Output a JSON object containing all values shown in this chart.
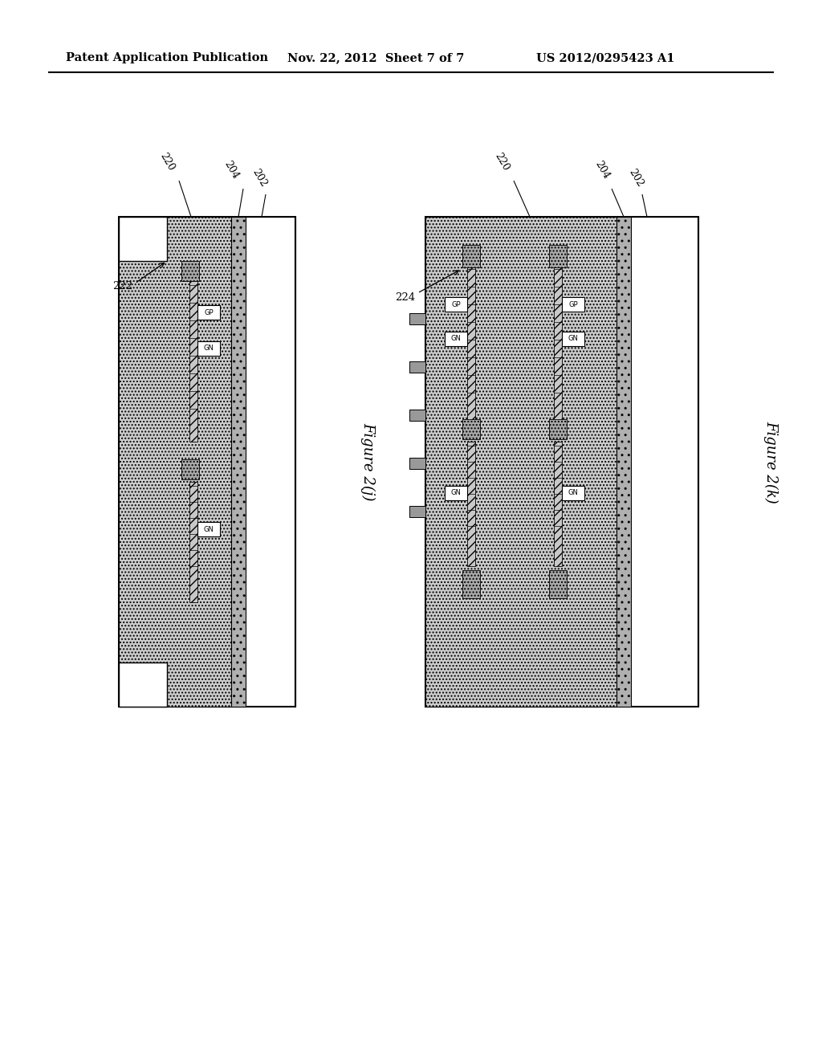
{
  "header_left": "Patent Application Publication",
  "header_center": "Nov. 22, 2012  Sheet 7 of 7",
  "header_right": "US 2012/0295423 A1",
  "fig_j_label": "Figure 2(j)",
  "fig_k_label": "Figure 2(k)",
  "bg": "#ffffff",
  "c220": "#cccccc",
  "c204": "#b0b0b0",
  "c202": "#ffffff",
  "c_dotcap": "#aaaaaa",
  "c_gate": "#c8c8c8",
  "c_contact": "#999999",
  "c_dotregion": "#bbbbbb"
}
